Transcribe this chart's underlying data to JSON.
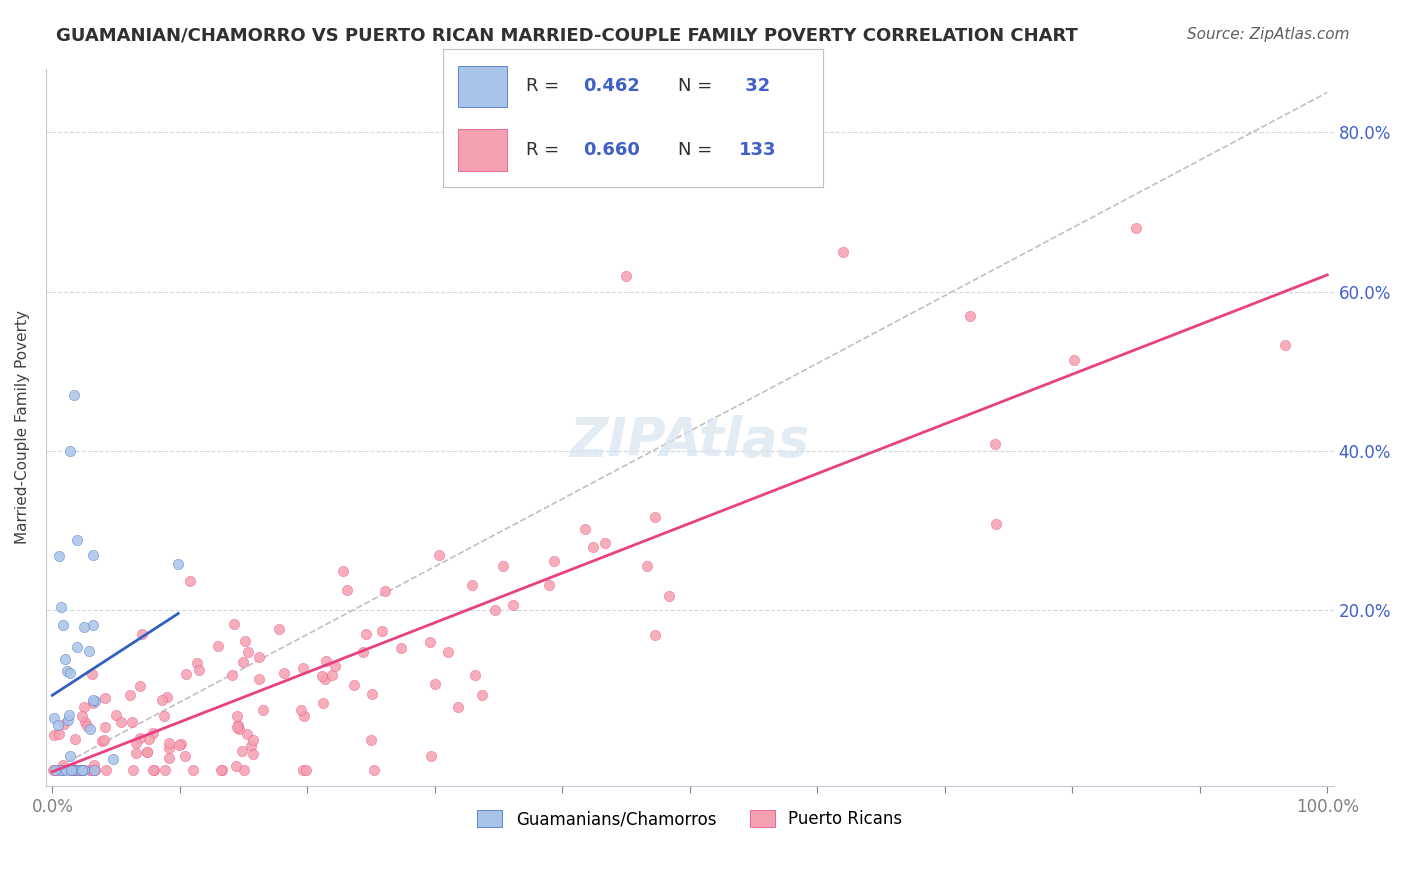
{
  "title": "GUAMANIAN/CHAMORRO VS PUERTO RICAN MARRIED-COUPLE FAMILY POVERTY CORRELATION CHART",
  "source": "Source: ZipAtlas.com",
  "ylabel": "Married-Couple Family Poverty",
  "legend_label1": "Guamanians/Chamorros",
  "legend_label2": "Puerto Ricans",
  "R1": 0.462,
  "N1": 32,
  "R2": 0.66,
  "N2": 133,
  "color1": "#a8c4e8",
  "color2": "#f5a0b0",
  "trend_color1": "#3060c0",
  "trend_color2": "#e84080",
  "diag_color": "#c0c0c0",
  "legend_text_color": "#4060c8",
  "background_color": "#ffffff"
}
